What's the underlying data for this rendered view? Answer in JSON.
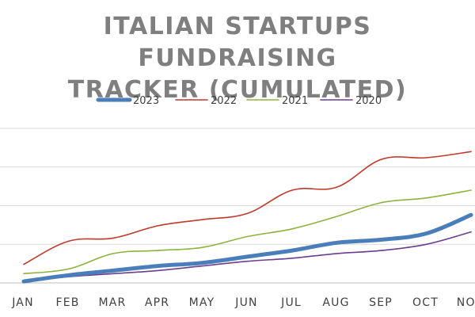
{
  "chart_data": {
    "type": "line",
    "title_lines": [
      "ITALIAN STARTUPS FUNDRAISING",
      "TRACKER (CUMULATED)"
    ],
    "xlabel": "",
    "ylabel": "",
    "categories": [
      "JAN",
      "FEB",
      "MAR",
      "APR",
      "MAY",
      "JUN",
      "JUL",
      "AUG",
      "SEP",
      "OCT",
      "NOV"
    ],
    "ylim": [
      0,
      100
    ],
    "y_gridlines": [
      0,
      25,
      50,
      75,
      100
    ],
    "grid": "horizontal",
    "legend_position": "top",
    "series": [
      {
        "name": "2023",
        "color": "#4a7ebb",
        "values": [
          1,
          5,
          8,
          11,
          13,
          17,
          21,
          26,
          28,
          32,
          44
        ]
      },
      {
        "name": "2022",
        "color": "#c0392b",
        "values": [
          12,
          27,
          29,
          37,
          41,
          45,
          60,
          62,
          80,
          81,
          85
        ]
      },
      {
        "name": "2021",
        "color": "#8db33e",
        "values": [
          6,
          9,
          19,
          21,
          23,
          30,
          35,
          43,
          52,
          55,
          60
        ]
      },
      {
        "name": "2020",
        "color": "#6a3d91",
        "values": [
          1,
          4,
          6,
          8,
          11,
          14,
          16,
          19,
          21,
          25,
          33
        ]
      }
    ]
  }
}
